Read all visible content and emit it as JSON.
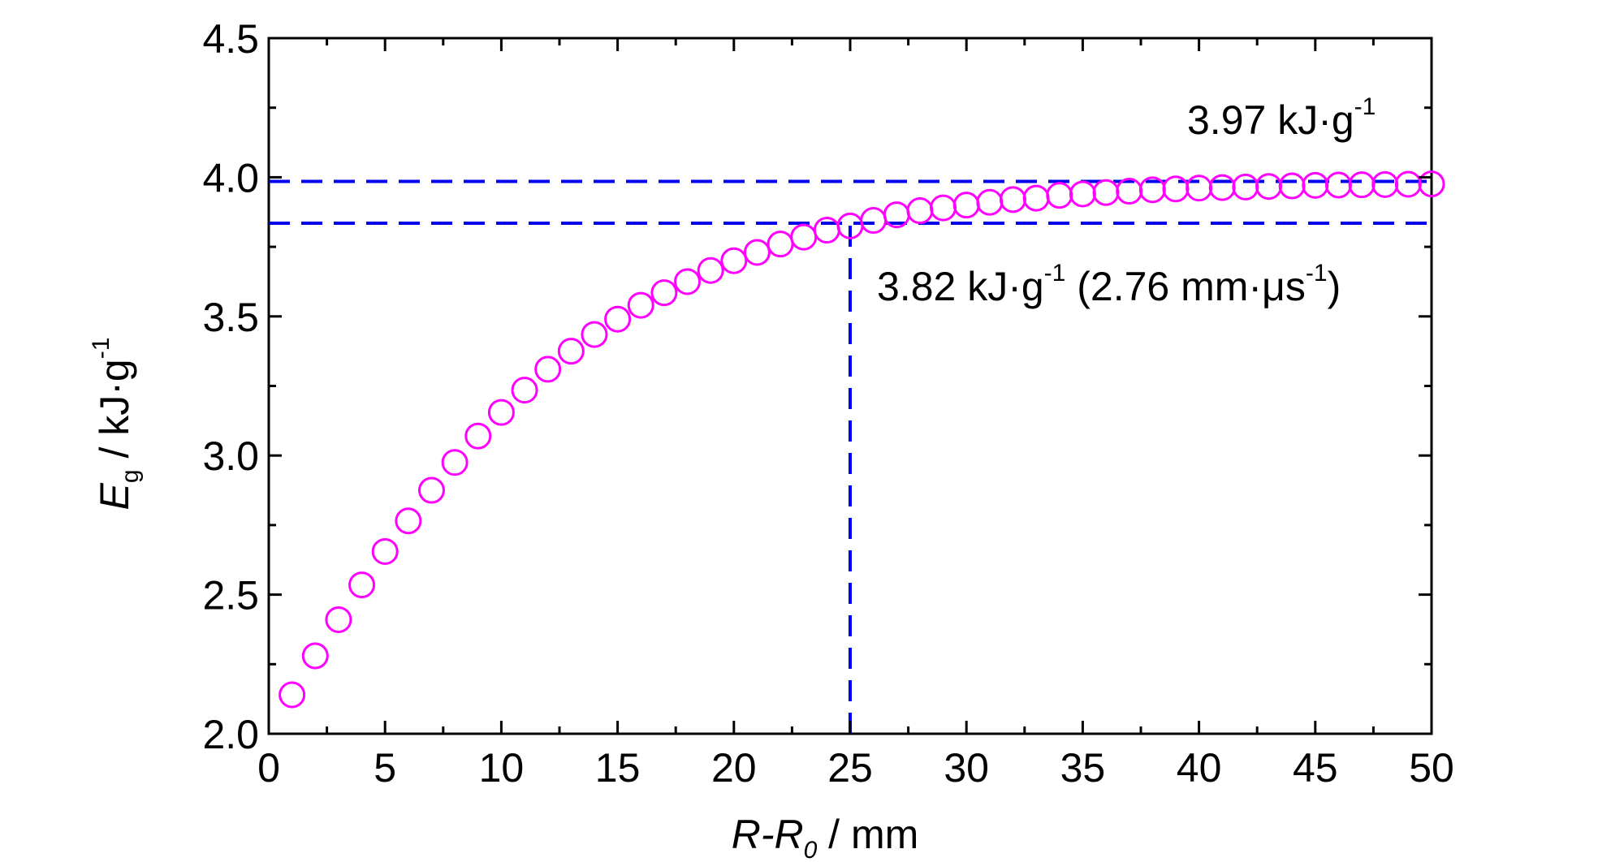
{
  "chart_data": {
    "type": "scatter",
    "x_axis": {
      "symbol": "R-R",
      "subscript": "0",
      "unit": " / mm",
      "range": [
        0,
        50
      ],
      "ticks": [
        "0",
        "5",
        "10",
        "15",
        "20",
        "25",
        "30",
        "35",
        "40",
        "45",
        "50"
      ]
    },
    "y_axis": {
      "symbol": "E",
      "subscript": "g",
      "unit": " / kJ·g",
      "unit_exponent": "-1",
      "range": [
        2.0,
        4.5
      ],
      "ticks": [
        "2.0",
        "2.5",
        "3.0",
        "3.5",
        "4.0",
        "4.5"
      ]
    },
    "series": [
      {
        "marker": "open-circle",
        "color": "#ff00ff",
        "points": [
          [
            1,
            2.14
          ],
          [
            2,
            2.28
          ],
          [
            3,
            2.41
          ],
          [
            4,
            2.535
          ],
          [
            5,
            2.655
          ],
          [
            6,
            2.765
          ],
          [
            7,
            2.875
          ],
          [
            8,
            2.975
          ],
          [
            9,
            3.07
          ],
          [
            10,
            3.155
          ],
          [
            11,
            3.235
          ],
          [
            12,
            3.31
          ],
          [
            13,
            3.375
          ],
          [
            14,
            3.435
          ],
          [
            15,
            3.49
          ],
          [
            16,
            3.54
          ],
          [
            17,
            3.585
          ],
          [
            18,
            3.625
          ],
          [
            19,
            3.665
          ],
          [
            20,
            3.7
          ],
          [
            21,
            3.73
          ],
          [
            22,
            3.76
          ],
          [
            23,
            3.785
          ],
          [
            24,
            3.81
          ],
          [
            25,
            3.825
          ],
          [
            26,
            3.845
          ],
          [
            27,
            3.865
          ],
          [
            28,
            3.88
          ],
          [
            29,
            3.89
          ],
          [
            30,
            3.9
          ],
          [
            31,
            3.91
          ],
          [
            32,
            3.92
          ],
          [
            33,
            3.925
          ],
          [
            34,
            3.935
          ],
          [
            35,
            3.94
          ],
          [
            36,
            3.945
          ],
          [
            37,
            3.95
          ],
          [
            38,
            3.955
          ],
          [
            39,
            3.958
          ],
          [
            40,
            3.961
          ],
          [
            41,
            3.963
          ],
          [
            42,
            3.965
          ],
          [
            43,
            3.967
          ],
          [
            44,
            3.969
          ],
          [
            45,
            3.971
          ],
          [
            46,
            3.972
          ],
          [
            47,
            3.973
          ],
          [
            48,
            3.974
          ],
          [
            49,
            3.975
          ],
          [
            50,
            3.976
          ]
        ]
      }
    ],
    "reference_lines": [
      {
        "orientation": "horizontal",
        "value": 3.985,
        "color": "#0000ee",
        "style": "dashed"
      },
      {
        "orientation": "horizontal",
        "value": 3.835,
        "color": "#0000ee",
        "style": "dashed"
      },
      {
        "orientation": "vertical",
        "value": 25,
        "y_from": 2.0,
        "y_to": 3.835,
        "color": "#0000ee",
        "style": "dashed"
      }
    ],
    "annotations": [
      {
        "id": "top",
        "text": "3.97 kJ·g",
        "sup": "-1",
        "extra": ""
      },
      {
        "id": "mid",
        "text": "3.82 kJ·g",
        "sup": "-1",
        "extra_open": " (2.76 mm·μs",
        "extra_sup": "-1",
        "extra_close": ")"
      }
    ],
    "grid": false,
    "legend": "none"
  }
}
